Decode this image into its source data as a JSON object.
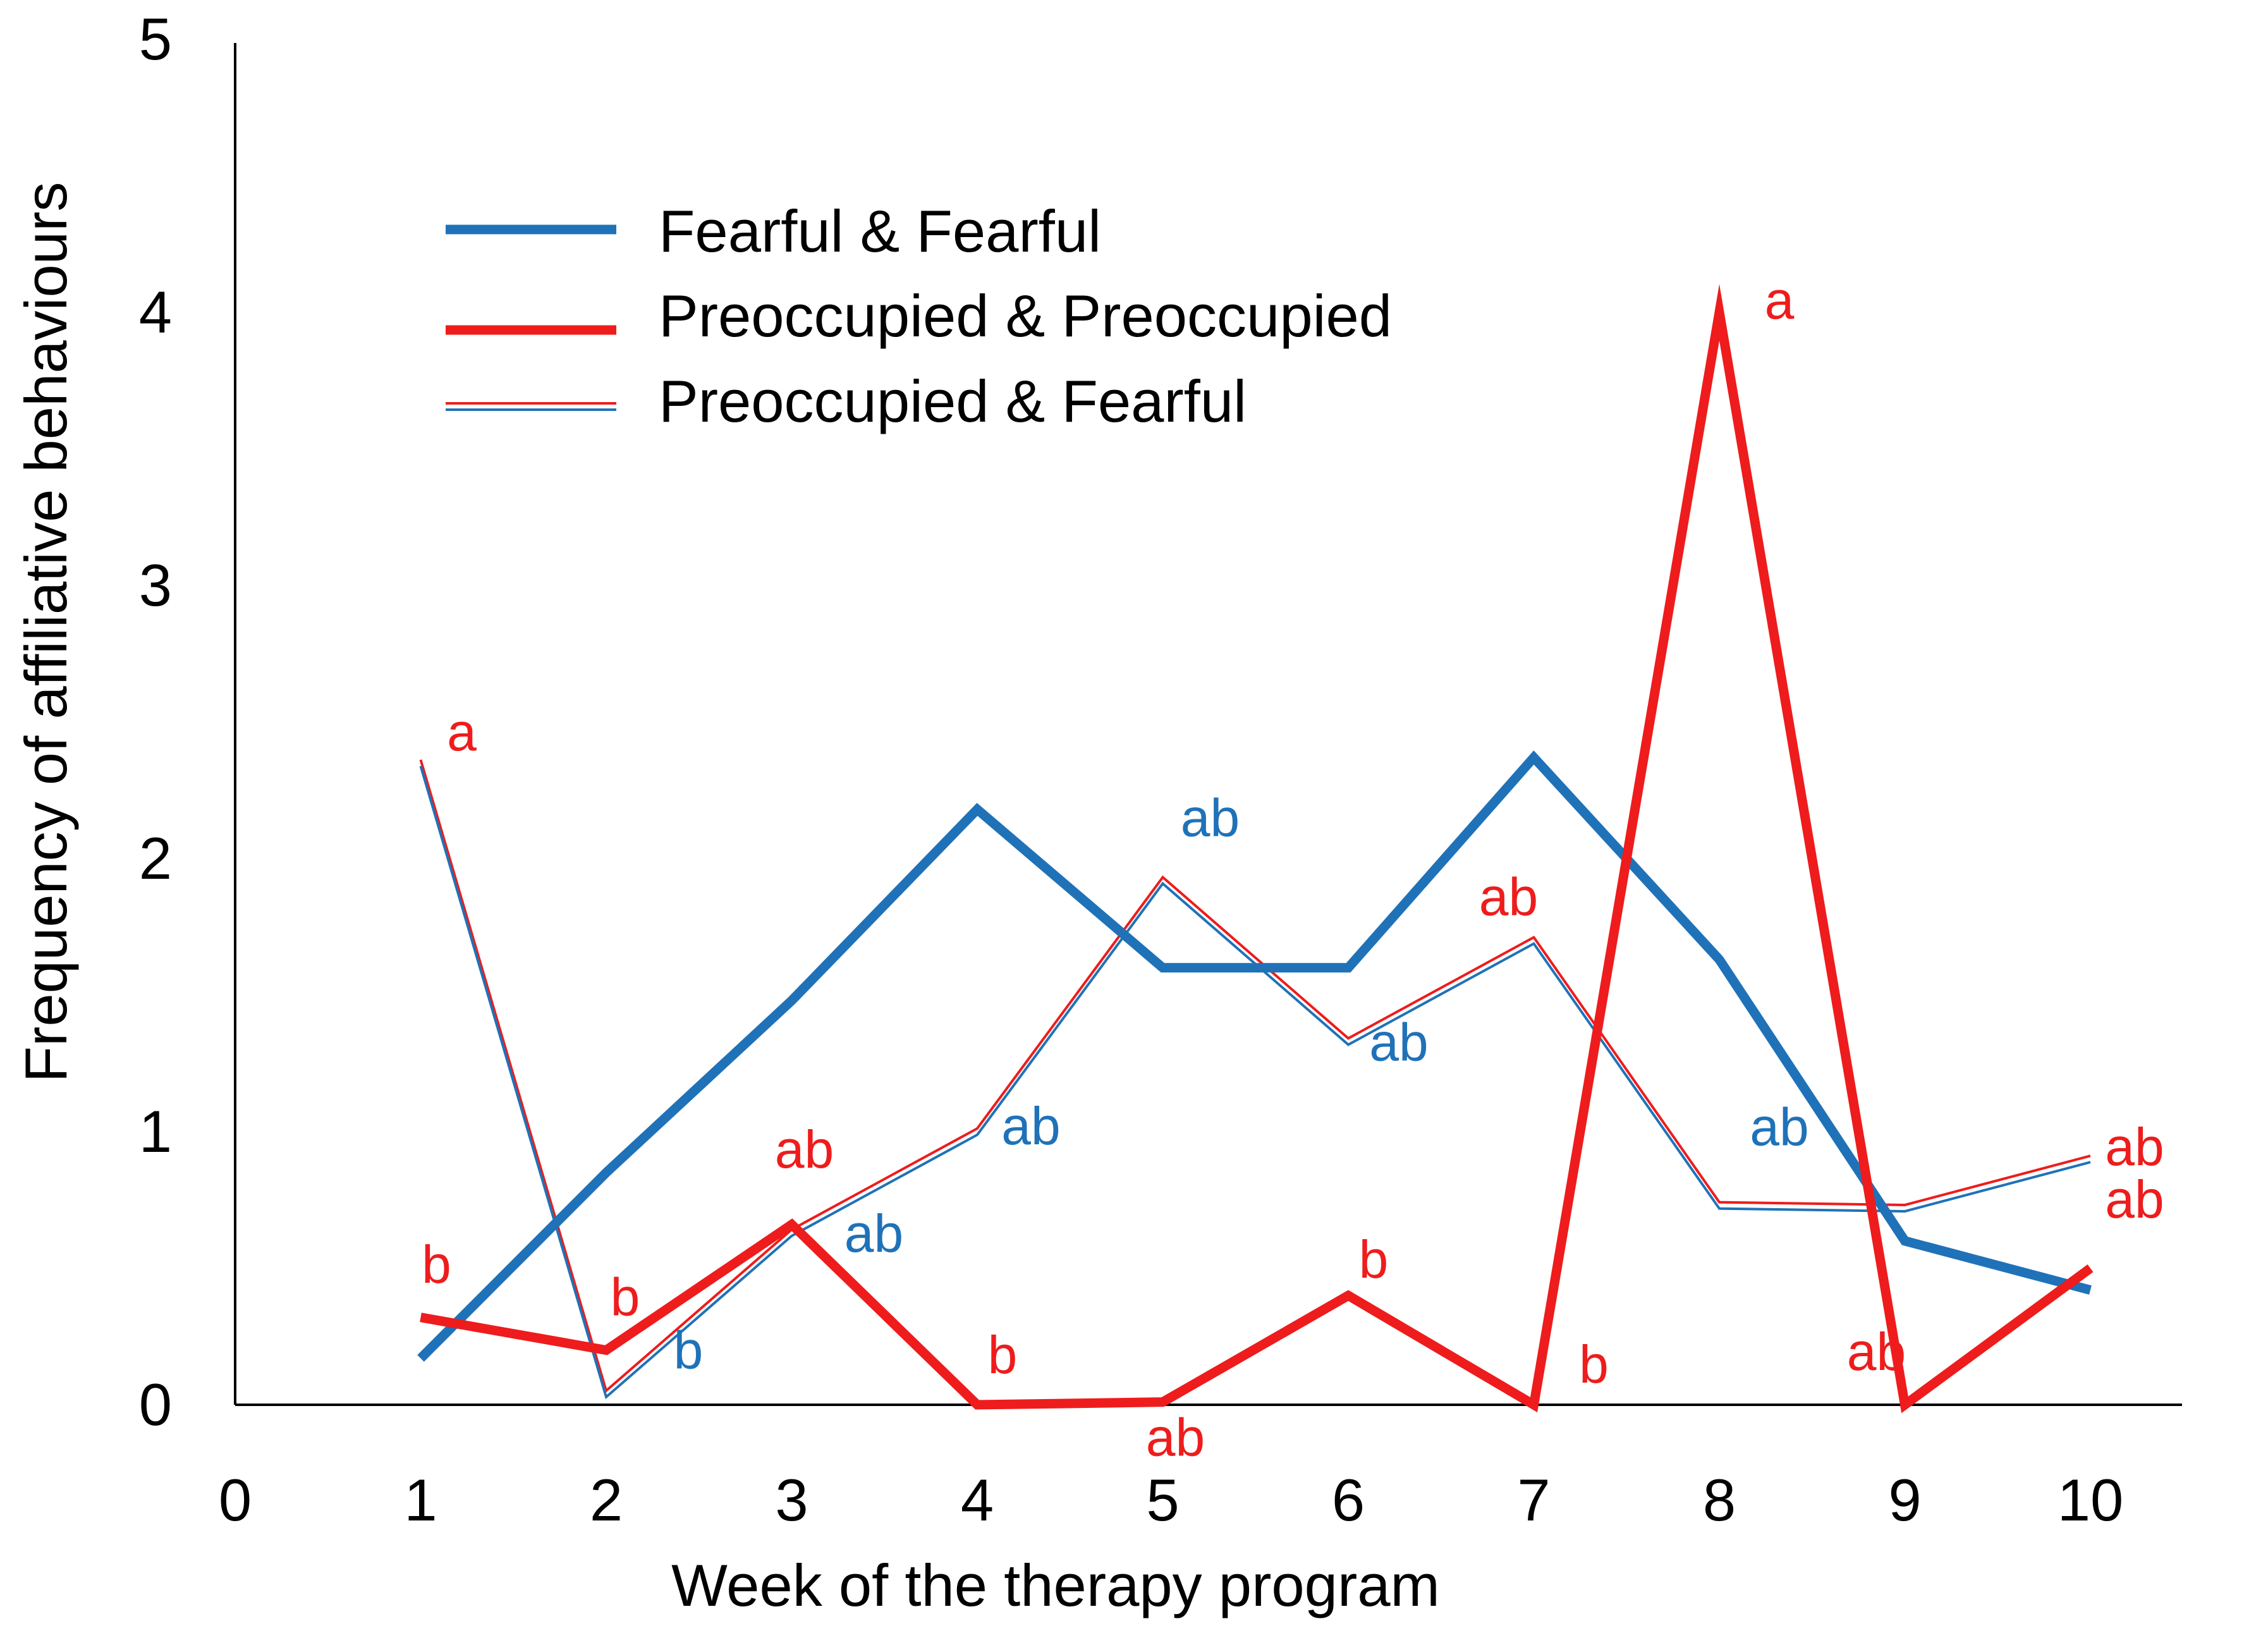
{
  "chart_data": {
    "type": "line",
    "title": "",
    "xlabel": "Week of the therapy program",
    "ylabel": "Frequency of affiliative behaviours",
    "xlim": [
      0,
      10.5
    ],
    "ylim": [
      0,
      5
    ],
    "xticks": [
      "0",
      "1",
      "2",
      "3",
      "4",
      "5",
      "6",
      "7",
      "8",
      "9",
      "10"
    ],
    "yticks": [
      "0",
      "1",
      "2",
      "3",
      "4",
      "5"
    ],
    "grid": false,
    "legend_position": "top-left",
    "x": [
      1,
      2,
      3,
      4,
      5,
      6,
      7,
      8,
      9,
      10
    ],
    "series": [
      {
        "name": "Fearful & Fearful",
        "style": "thick-blue",
        "color": "#1F72B8",
        "values": [
          0.17,
          0.85,
          1.48,
          2.18,
          1.6,
          1.6,
          2.37,
          1.63,
          0.6,
          0.42
        ],
        "labels": []
      },
      {
        "name": "Preoccupied & Preoccupied",
        "style": "thick-red",
        "color": "#EE1C1C",
        "values": [
          0.32,
          0.2,
          0.66,
          0.0,
          0.01,
          0.4,
          0.0,
          4.0,
          0.0,
          0.5
        ],
        "labels": [
          "b",
          "b",
          "ab",
          "b",
          "ab",
          "b",
          "b",
          "a",
          "ab",
          "ab"
        ]
      },
      {
        "name": "Preoccupied & Fearful",
        "style": "double-red-blue",
        "color": "#EE1C1C",
        "color2": "#1F72B8",
        "values": [
          2.35,
          0.04,
          0.63,
          1.0,
          1.92,
          1.33,
          1.7,
          0.73,
          0.72,
          0.9
        ],
        "labels": [
          "a",
          "b",
          "ab",
          "ab",
          "ab",
          "ab",
          "ab",
          "ab",
          "",
          "ab"
        ]
      }
    ]
  }
}
